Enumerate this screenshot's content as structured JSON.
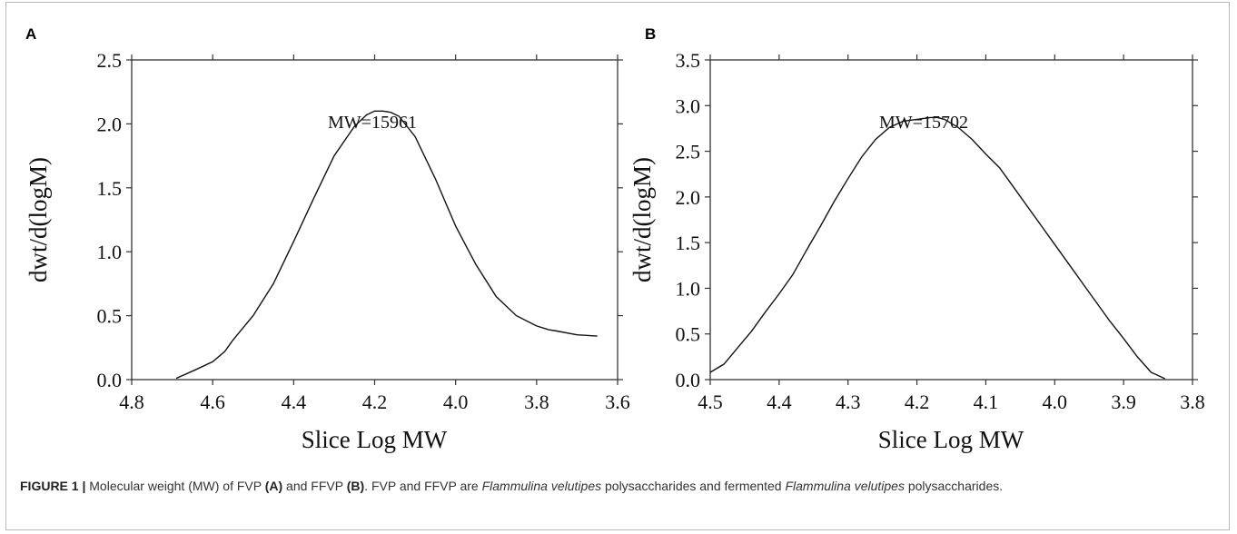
{
  "chart_data": [
    {
      "panel": "A",
      "type": "line",
      "annotation": "MW=15961",
      "xlabel": "Slice Log MW",
      "ylabel": "dwt/d(logM)",
      "xlim": [
        4.8,
        3.6
      ],
      "ylim": [
        0,
        2.5
      ],
      "x_ticks": [
        "4.8",
        "4.6",
        "4.4",
        "4.2",
        "4.0",
        "3.8",
        "3.6"
      ],
      "y_ticks": [
        "0.0",
        "0.5",
        "1.0",
        "1.5",
        "2.0",
        "2.5"
      ],
      "grid": false,
      "series": [
        {
          "x": [
            4.69,
            4.64,
            4.6,
            4.57,
            4.55,
            4.5,
            4.45,
            4.4,
            4.35,
            4.3,
            4.25,
            4.22,
            4.2,
            4.18,
            4.16,
            4.14,
            4.1,
            4.05,
            4.0,
            3.95,
            3.9,
            3.85,
            3.8,
            3.77,
            3.75,
            3.7,
            3.65
          ],
          "y": [
            0.01,
            0.08,
            0.14,
            0.22,
            0.31,
            0.5,
            0.75,
            1.08,
            1.42,
            1.75,
            1.98,
            2.07,
            2.1,
            2.1,
            2.09,
            2.06,
            1.9,
            1.57,
            1.2,
            0.9,
            0.65,
            0.5,
            0.42,
            0.39,
            0.38,
            0.35,
            0.34
          ]
        }
      ]
    },
    {
      "panel": "B",
      "type": "line",
      "annotation": "MW=15702",
      "xlabel": "Slice Log MW",
      "ylabel": "dwt/d(logM)",
      "xlim": [
        4.5,
        3.8
      ],
      "ylim": [
        0,
        3.5
      ],
      "x_ticks": [
        "4.5",
        "4.4",
        "4.3",
        "4.2",
        "4.1",
        "4.0",
        "3.9",
        "3.8"
      ],
      "y_ticks": [
        "0.0",
        "0.5",
        "1.0",
        "1.5",
        "2.0",
        "2.5",
        "3.0",
        "3.5"
      ],
      "grid": false,
      "series": [
        {
          "x": [
            4.5,
            4.48,
            4.46,
            4.44,
            4.42,
            4.4,
            4.38,
            4.36,
            4.34,
            4.32,
            4.3,
            4.28,
            4.26,
            4.24,
            4.22,
            4.2,
            4.18,
            4.17,
            4.16,
            4.14,
            4.12,
            4.1,
            4.08,
            4.06,
            4.04,
            4.02,
            4.0,
            3.98,
            3.96,
            3.94,
            3.92,
            3.9,
            3.88,
            3.86,
            3.84
          ],
          "y": [
            0.08,
            0.17,
            0.35,
            0.53,
            0.74,
            0.94,
            1.15,
            1.42,
            1.68,
            1.95,
            2.2,
            2.44,
            2.63,
            2.76,
            2.83,
            2.85,
            2.87,
            2.87,
            2.85,
            2.76,
            2.63,
            2.47,
            2.32,
            2.11,
            1.9,
            1.69,
            1.48,
            1.27,
            1.06,
            0.85,
            0.64,
            0.45,
            0.25,
            0.08,
            0.01
          ]
        }
      ]
    }
  ],
  "caption": {
    "label": "FIGURE 1 |",
    "text_1": " Molecular weight (MW) of FVP ",
    "ref_a": "(A)",
    "text_2": " and FFVP ",
    "ref_b": "(B)",
    "text_3": ". FVP and FFVP are ",
    "italic_1": "Flammulina velutipes",
    "text_4": " polysaccharides and fermented ",
    "italic_2": "Flammulina velutipes",
    "text_5": " polysaccharides."
  }
}
